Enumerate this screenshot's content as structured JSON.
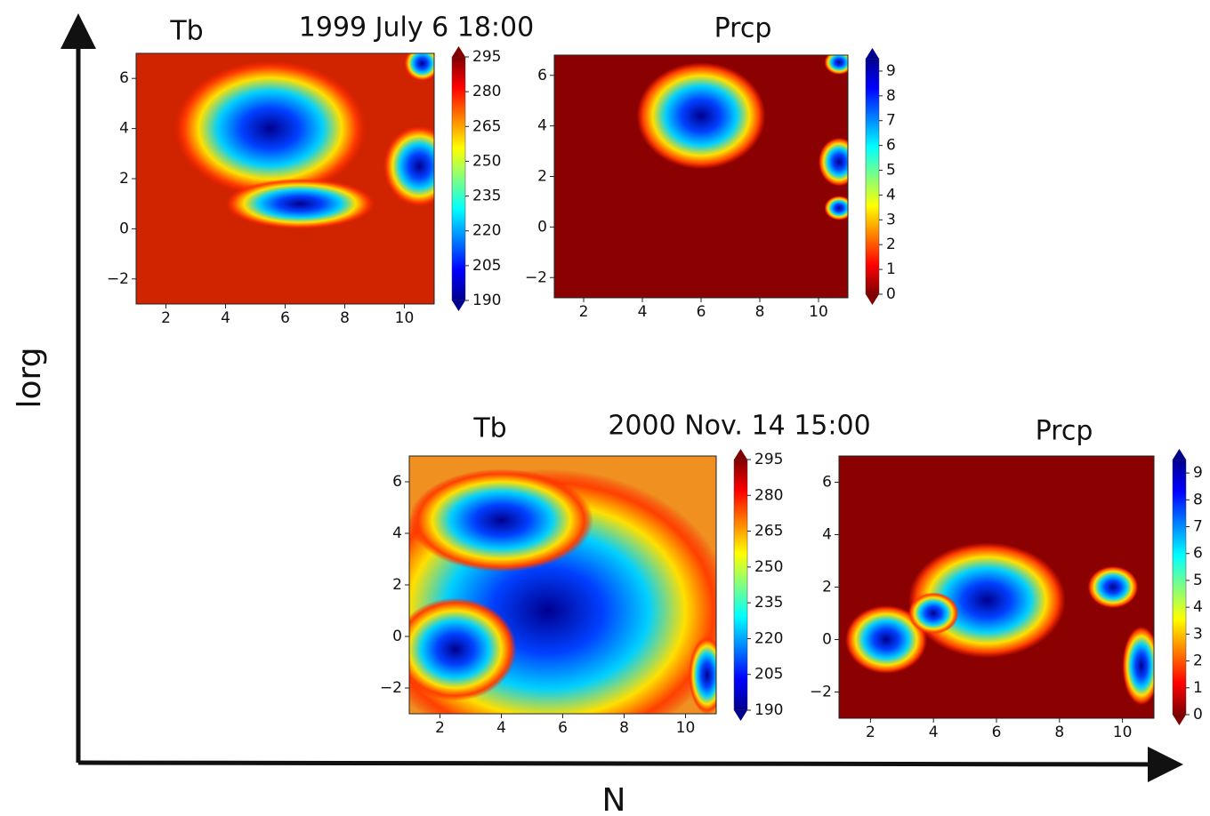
{
  "figure": {
    "y_axis_label": "lorg",
    "x_axis_label": "N",
    "captions": [
      "1999 July 6 18:00",
      "2000 Nov. 14 15:00"
    ]
  },
  "chart_data": [
    {
      "type": "heatmap",
      "title": "Tb",
      "colormap": "jet",
      "xlim": [
        1,
        11
      ],
      "ylim": [
        -3,
        7
      ],
      "xticks": [
        2,
        4,
        6,
        8,
        10
      ],
      "yticks": [
        {
          "value": -2,
          "label": "−2"
        },
        0,
        2,
        4,
        6
      ],
      "clim": [
        190,
        295
      ],
      "cticks": [
        190,
        205,
        220,
        235,
        250,
        265,
        280,
        295
      ]
    },
    {
      "type": "heatmap",
      "title": "Prcp",
      "colormap": "jet_r",
      "xlim": [
        1,
        11
      ],
      "ylim": [
        -2.8,
        6.8
      ],
      "xticks": [
        2,
        4,
        6,
        8,
        10
      ],
      "yticks": [
        {
          "value": -2,
          "label": "−2"
        },
        0,
        2,
        4,
        6
      ],
      "clim": [
        0,
        9.5
      ],
      "cticks": [
        0,
        1,
        2,
        3,
        4,
        5,
        6,
        7,
        8,
        9
      ]
    },
    {
      "type": "heatmap",
      "title": "Tb",
      "colormap": "jet",
      "xlim": [
        1,
        11
      ],
      "ylim": [
        -3,
        7
      ],
      "xticks": [
        2,
        4,
        6,
        8,
        10
      ],
      "yticks": [
        {
          "value": -2,
          "label": "−2"
        },
        0,
        2,
        4,
        6
      ],
      "clim": [
        190,
        295
      ],
      "cticks": [
        190,
        205,
        220,
        235,
        250,
        265,
        280,
        295
      ]
    },
    {
      "type": "heatmap",
      "title": "Prcp",
      "colormap": "jet_r",
      "xlim": [
        1,
        11
      ],
      "ylim": [
        -3,
        7
      ],
      "xticks": [
        2,
        4,
        6,
        8,
        10
      ],
      "yticks": [
        {
          "value": -2,
          "label": "−2"
        },
        0,
        2,
        4,
        6
      ],
      "clim": [
        0,
        9.5
      ],
      "cticks": [
        0,
        1,
        2,
        3,
        4,
        5,
        6,
        7,
        8,
        9
      ]
    }
  ]
}
